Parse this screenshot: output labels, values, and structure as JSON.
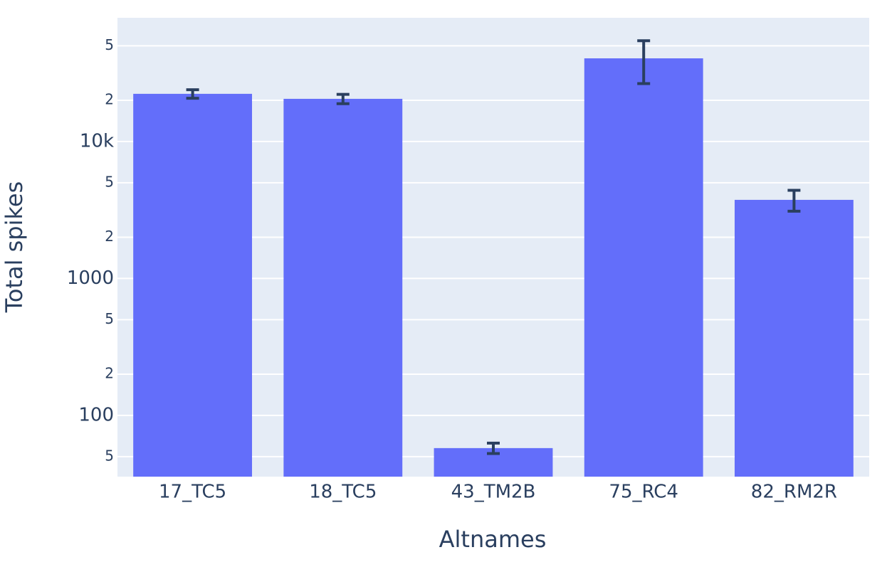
{
  "chart_data": {
    "type": "bar",
    "categories": [
      "17_TC5",
      "18_TC5",
      "43_TM2B",
      "75_RC4",
      "82_RM2R"
    ],
    "values": [
      22300,
      20500,
      57.7,
      40500,
      3750
    ],
    "errors": [
      1600,
      1600,
      5,
      14000,
      650
    ],
    "color": "#636efa",
    "error_color": "#2a3f5f",
    "xlabel": "Altnames",
    "ylabel": "Total spikes",
    "log_y": true,
    "ylim": [
      35.7,
      80100
    ],
    "yticks": [
      {
        "value": 50,
        "label": "5"
      },
      100,
      {
        "value": 200,
        "label": "2"
      },
      {
        "value": 500,
        "label": "5"
      },
      1000,
      {
        "value": 2000,
        "label": "2"
      },
      {
        "value": 5000,
        "label": "5"
      },
      {
        "value": 10000,
        "label": "10k"
      },
      {
        "value": 20000,
        "label": "2"
      },
      {
        "value": 50000,
        "label": "5"
      }
    ],
    "grid": true
  }
}
